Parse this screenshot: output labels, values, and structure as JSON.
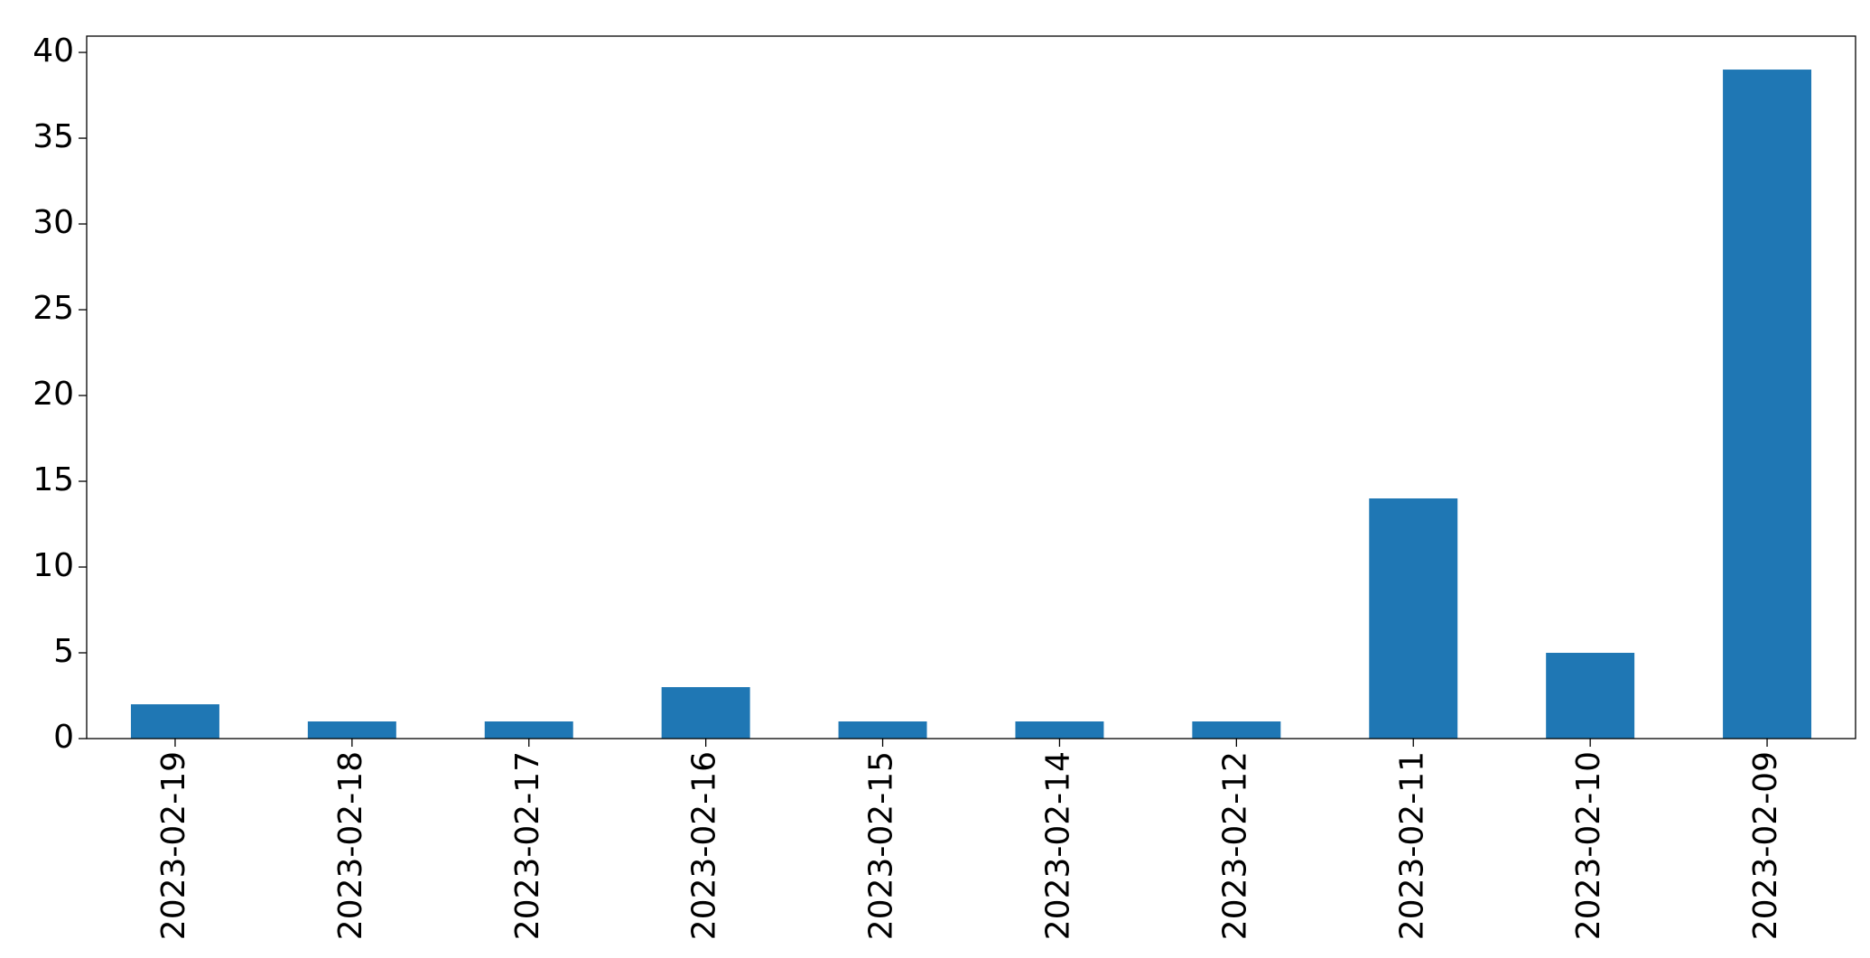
{
  "chart_data": {
    "type": "bar",
    "categories": [
      "2023-02-19",
      "2023-02-18",
      "2023-02-17",
      "2023-02-16",
      "2023-02-15",
      "2023-02-14",
      "2023-02-12",
      "2023-02-11",
      "2023-02-10",
      "2023-02-09"
    ],
    "values": [
      2,
      1,
      1,
      3,
      1,
      1,
      1,
      14,
      5,
      39
    ],
    "color": "#1f77b4",
    "ylim": [
      0,
      40.95
    ],
    "yticks": [
      0,
      5,
      10,
      15,
      20,
      25,
      30,
      35,
      40
    ],
    "grid": false
  }
}
